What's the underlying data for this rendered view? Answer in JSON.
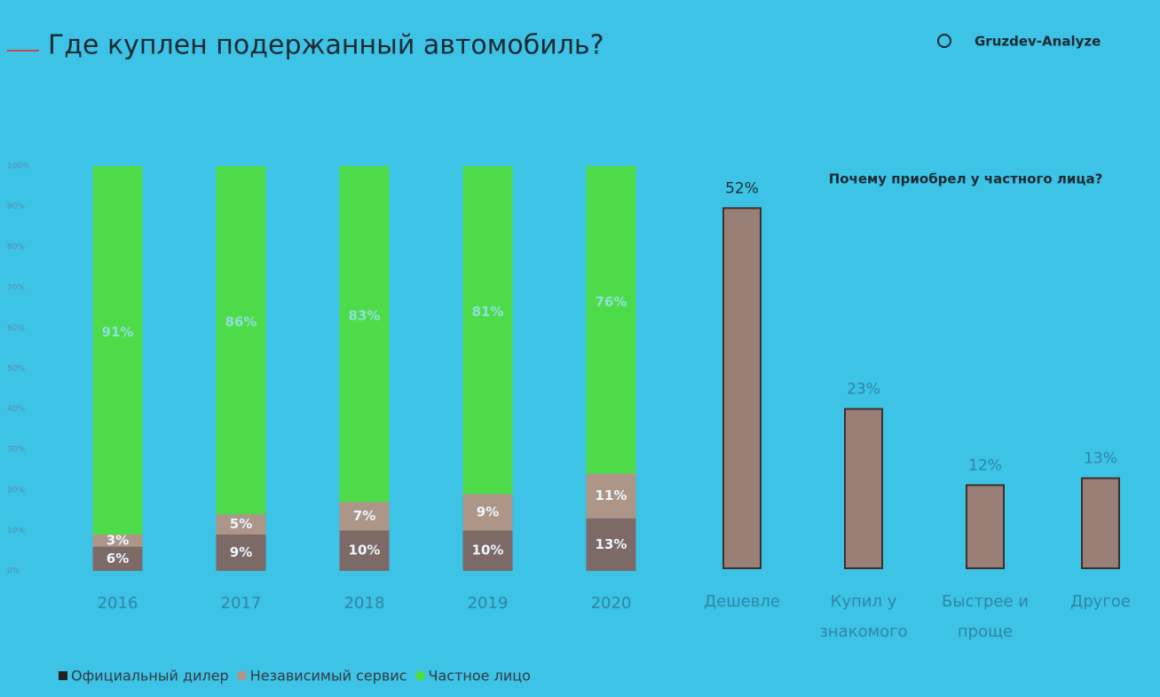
{
  "title": "Где куплен подержанный автомобиль?",
  "brand": "Gruzdev-Analyze",
  "chart_data": [
    {
      "type": "stacked-bar",
      "categories": [
        "2016",
        "2017",
        "2018",
        "2019",
        "2020"
      ],
      "series": [
        {
          "name": "Официальный дилер",
          "color": "#7d6a66",
          "values": [
            6,
            9,
            10,
            10,
            13
          ],
          "value_labels": [
            "6%",
            "9%",
            "10%",
            "10%",
            "13%"
          ]
        },
        {
          "name": "Независимый сервис",
          "color": "#ad9688",
          "values": [
            3,
            5,
            7,
            9,
            11
          ],
          "value_labels": [
            "3%",
            "5%",
            "7%",
            "9%",
            "11%"
          ]
        },
        {
          "name": "Частное лицо",
          "color": "#4ddb4a",
          "values": [
            91,
            86,
            83,
            81,
            76
          ],
          "value_labels": [
            "91%",
            "86%",
            "83%",
            "81%",
            "76%"
          ]
        }
      ],
      "ylim": [
        0,
        100
      ],
      "yticks": [
        {
          "value": 0,
          "label": "0%"
        },
        {
          "value": 10,
          "label": "10%"
        },
        {
          "value": 20,
          "label": "20%"
        },
        {
          "value": 30,
          "label": "30%"
        },
        {
          "value": 40,
          "label": "40%"
        },
        {
          "value": 50,
          "label": "50%"
        },
        {
          "value": 60,
          "label": "60%"
        },
        {
          "value": 70,
          "label": "70%"
        },
        {
          "value": 80,
          "label": "80%"
        },
        {
          "value": 90,
          "label": "90%"
        },
        {
          "value": 100,
          "label": "100%"
        }
      ],
      "legend": "bottom-left"
    },
    {
      "type": "bar",
      "title": "Почему приобрел у частного лица?",
      "categories": [
        "Дешевле",
        "Купил у знакомого",
        "Быстрее и проще",
        "Другое"
      ],
      "values": [
        52,
        23,
        12,
        13
      ],
      "value_labels": [
        "52%",
        "23%",
        "12%",
        "13%"
      ],
      "color": "#9a7f77"
    }
  ]
}
